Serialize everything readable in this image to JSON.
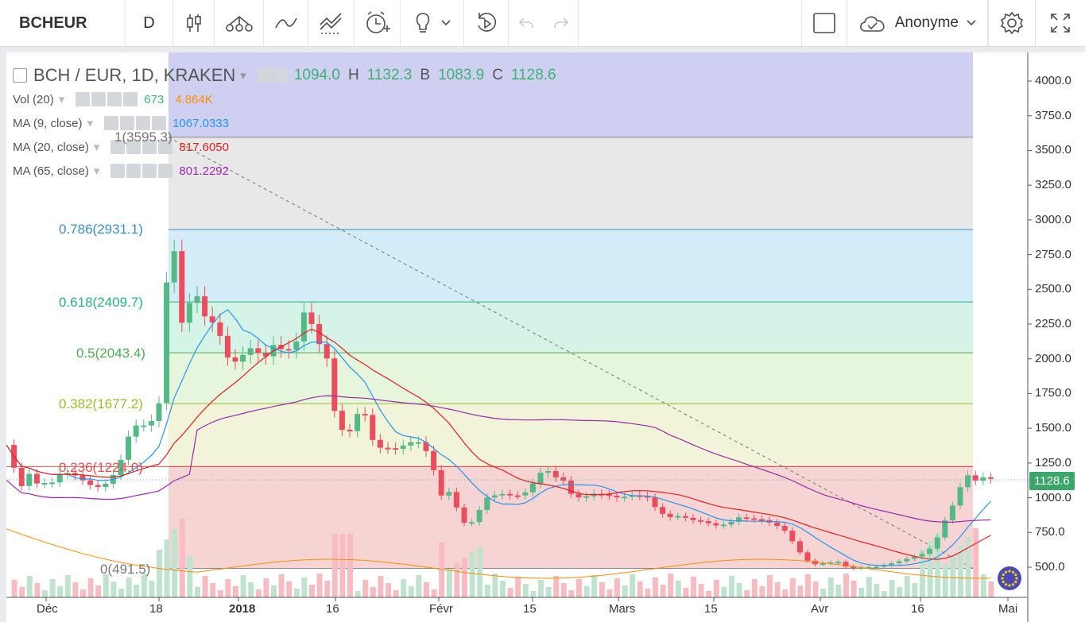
{
  "toolbar": {
    "symbol": "BCHEUR",
    "interval": "D",
    "user": "Anonyme",
    "icons": [
      "candles-icon",
      "indicators-icon",
      "line-icon",
      "drawing-icon",
      "alert-icon",
      "idea-icon",
      "chevron-down-icon",
      "replay-icon",
      "undo-icon",
      "redo-icon",
      "layout-icon",
      "cloud-icon",
      "chevron-down-icon",
      "settings-icon",
      "fullscreen-icon"
    ]
  },
  "legend": {
    "title": "BCH / EUR, 1D, KRAKEN",
    "ohlc": {
      "o_label": "O",
      "o": "1094.0",
      "h_label": "H",
      "h": "1132.3",
      "b_label": "B",
      "b": "1083.9",
      "c_label": "C",
      "c": "1128.6"
    },
    "vol_label": "Vol (20)",
    "vol_val": "673",
    "vol_ma": "4.864K",
    "ma9_label": "MA (9, close)",
    "ma9": "1067.0333",
    "ma20_label": "MA (20, close)",
    "ma20": "817.6050",
    "ma65_label": "MA (65, close)",
    "ma65": "801.2292"
  },
  "fib": {
    "l1": "1(3595.3)",
    "l786": "0.786(2931.1)",
    "l618": "0.618(2409.7)",
    "l5": "0.5(2043.4)",
    "l382": "0.382(1677.2)",
    "l236": "0.236(1224.0)",
    "l0": "0(491.5)"
  },
  "price_tag": "1128.6",
  "y_axis": [
    "4000.0",
    "3750.0",
    "3500.0",
    "3250.0",
    "3000.0",
    "2750.0",
    "2500.0",
    "2250.0",
    "2000.0",
    "1750.0",
    "1500.0",
    "1250.0",
    "1000.0",
    "750.0",
    "500.0"
  ],
  "x_axis": [
    "Déc",
    "18",
    "2018",
    "16",
    "Févr",
    "15",
    "Mars",
    "15",
    "Avr",
    "16",
    "Mai"
  ],
  "colors": {
    "up": "#53b987",
    "down": "#eb4d5c",
    "ma9": "#2196f3",
    "ma20": "#e61e1e",
    "ma65": "#9c27b0",
    "vol_ma": "#ff8c00"
  },
  "chart_data": {
    "type": "candlestick",
    "symbol": "BCH / EUR",
    "ylim": [
      300,
      4100
    ],
    "fib_levels": [
      3595.3,
      2931.1,
      2409.7,
      2043.4,
      1677.2,
      1224.0,
      491.5
    ],
    "last_close": 1128.6
  }
}
